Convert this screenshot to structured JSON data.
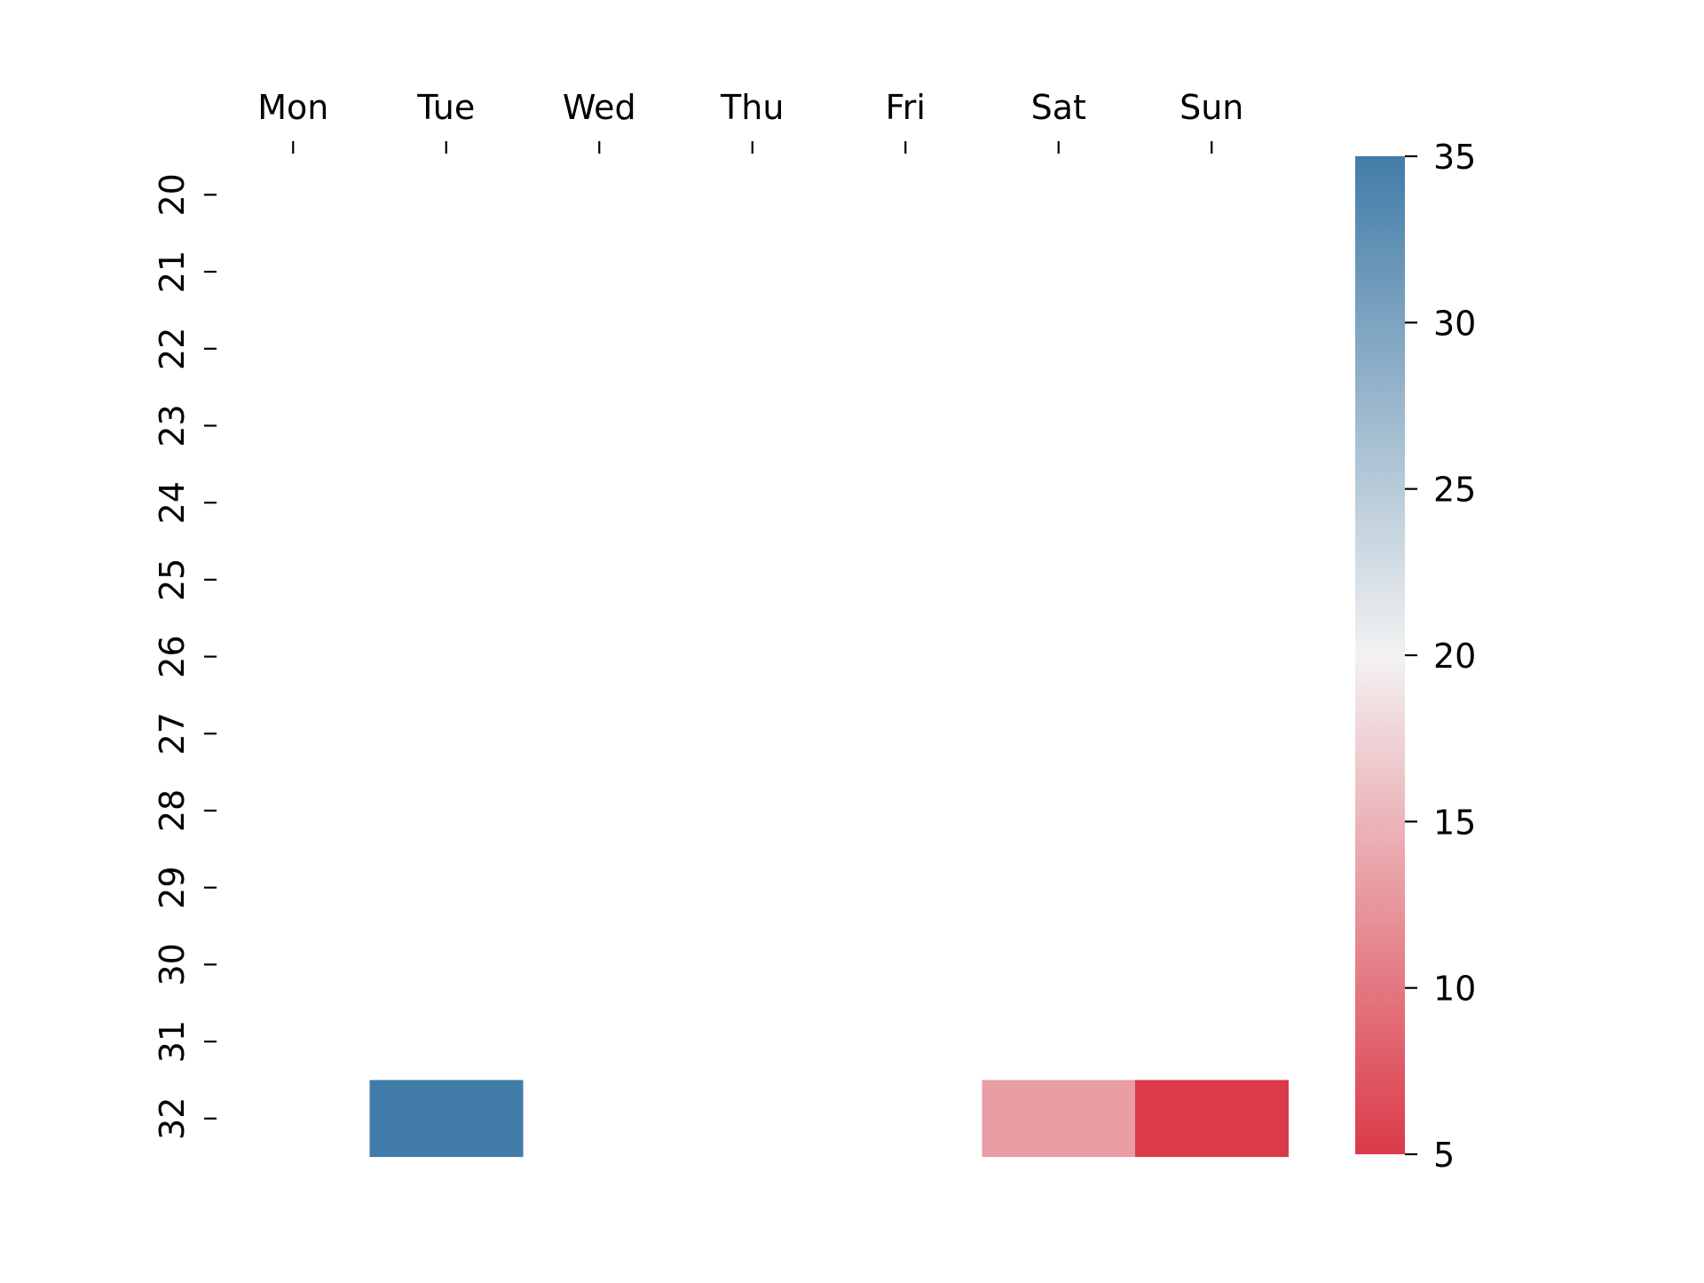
{
  "chart_data": {
    "type": "heatmap",
    "title": "",
    "xlabel": "",
    "ylabel": "",
    "x_tick_position": "top",
    "grid": false,
    "columns": [
      "Mon",
      "Tue",
      "Wed",
      "Thu",
      "Fri",
      "Sat",
      "Sun"
    ],
    "rows": [
      "20",
      "21",
      "22",
      "23",
      "24",
      "25",
      "26",
      "27",
      "28",
      "29",
      "30",
      "31",
      "32"
    ],
    "cells": [
      {
        "row": "32",
        "column": "Tue",
        "value": 35
      },
      {
        "row": "32",
        "column": "Sat",
        "value": 13
      },
      {
        "row": "32",
        "column": "Sun",
        "value": 5
      }
    ],
    "colorbar": {
      "min": 5,
      "max": 35,
      "ticks": [
        5,
        10,
        15,
        20,
        25,
        30,
        35
      ],
      "colors": {
        "low": "#dc3a48",
        "mid": "#f2f2f2",
        "high": "#427ca8"
      }
    }
  }
}
